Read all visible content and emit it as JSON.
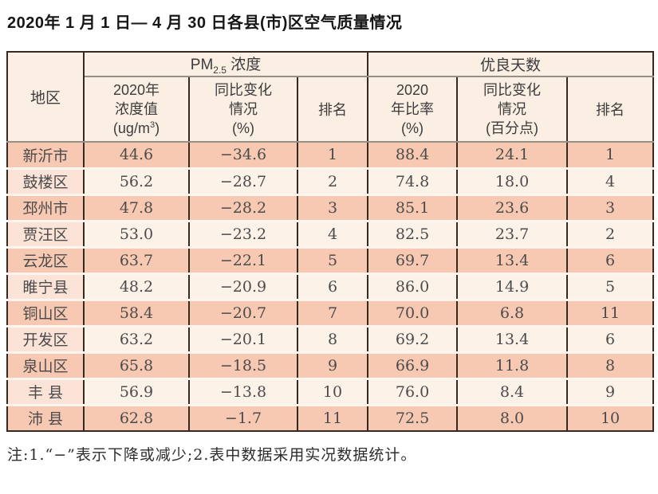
{
  "title": "2020年 1 月 1 日— 4 月 30 日各县(市)区空气质量情况",
  "table": {
    "corner_header": "地区",
    "group_pm25": {
      "prefix": "PM",
      "sub": "2.5",
      "suffix": " 浓度"
    },
    "group_good_days": "优良天数",
    "sub_headers": {
      "conc": {
        "l1": "2020年",
        "l2": "浓度值",
        "l3_pre": "(ug/m",
        "l3_sup": "3",
        "l3_post": ")"
      },
      "conc_change": {
        "l1": "同比变化",
        "l2": "情况",
        "l3": "(%)"
      },
      "rank1": "排名",
      "ratio": {
        "l1": "2020",
        "l2": "年比率",
        "l3": "(%)"
      },
      "ratio_change": {
        "l1": "同比变化",
        "l2": "情况",
        "l3": "(百分点)"
      },
      "rank2": "排名"
    },
    "rows": [
      [
        "新沂市",
        "44.6",
        "−34.6",
        "1",
        "88.4",
        "24.1",
        "1"
      ],
      [
        "鼓楼区",
        "56.2",
        "−28.7",
        "2",
        "74.8",
        "18.0",
        "4"
      ],
      [
        "邳州市",
        "47.8",
        "−28.2",
        "3",
        "85.1",
        "23.6",
        "3"
      ],
      [
        "贾汪区",
        "53.0",
        "−23.2",
        "4",
        "82.5",
        "23.7",
        "2"
      ],
      [
        "云龙区",
        "63.7",
        "−22.1",
        "5",
        "69.7",
        "13.4",
        "6"
      ],
      [
        "睢宁县",
        "48.2",
        "−20.9",
        "6",
        "86.0",
        "14.9",
        "5"
      ],
      [
        "铜山区",
        "58.4",
        "−20.7",
        "7",
        "70.0",
        "6.8",
        "11"
      ],
      [
        "开发区",
        "63.2",
        "−20.1",
        "8",
        "69.2",
        "13.4",
        "6"
      ],
      [
        "泉山区",
        "65.8",
        "−18.5",
        "9",
        "66.9",
        "11.8",
        "8"
      ],
      [
        "丰 县",
        "56.9",
        "−13.8",
        "10",
        "76.0",
        "8.4",
        "9"
      ],
      [
        "沛 县",
        "62.8",
        "−1.7",
        "11",
        "72.5",
        "8.0",
        "10"
      ]
    ]
  },
  "note": "注:1.“−”表示下降或减少;2.表中数据采用实况数据统计。",
  "colors": {
    "salmon": "#f8c9b2",
    "lightRow": "#fdf2e8",
    "lightRegion": "#fbe3d8",
    "headerBg": "#fbeee3",
    "borderDark": "#362a20",
    "borderGray": "#969086",
    "rowGap": "#fdf5ee",
    "bodyText": "#4b4b4b",
    "headerText": "#3c3c3c",
    "titleText": "#161616",
    "noteText": "#2d2d2d"
  }
}
